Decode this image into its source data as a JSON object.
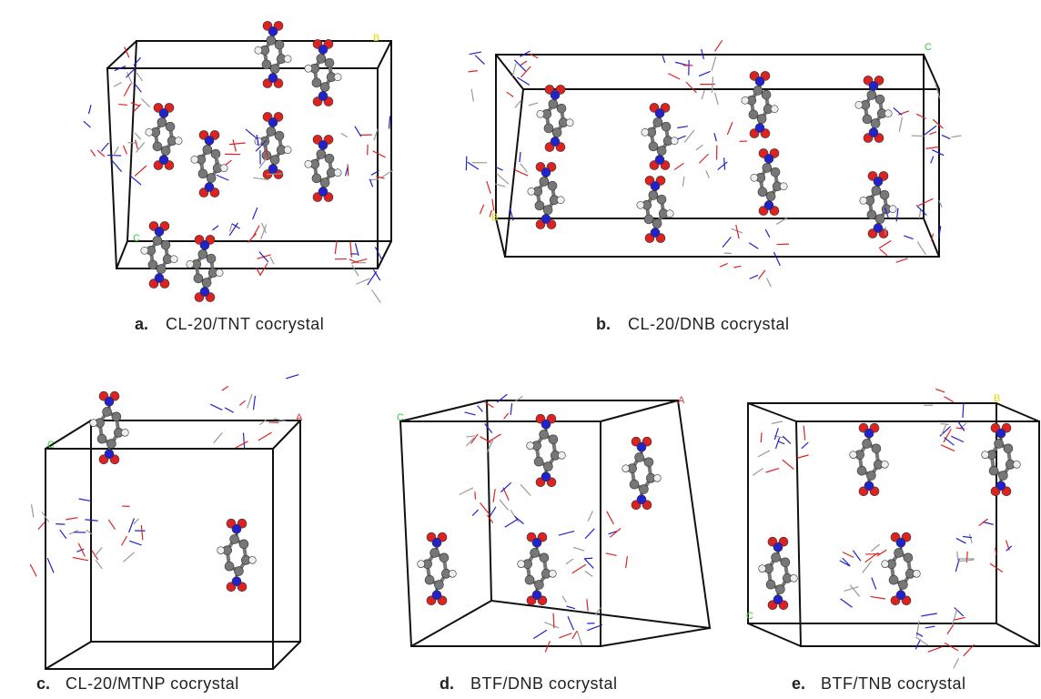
{
  "panels": [
    {
      "letter": "a.",
      "caption": "CL-20/TNT cocrystal",
      "axes": [
        "B",
        "C"
      ]
    },
    {
      "letter": "b.",
      "caption": "CL-20/DNB cocrystal",
      "axes": [
        "C",
        "B"
      ]
    },
    {
      "letter": "c.",
      "caption": "CL-20/MTNP cocrystal",
      "axes": [
        "C",
        "A"
      ]
    },
    {
      "letter": "d.",
      "caption": "BTF/DNB cocrystal",
      "axes": [
        "C",
        "A"
      ]
    },
    {
      "letter": "e.",
      "caption": "BTF/TNB cocrystal",
      "axes": [
        "B",
        "C"
      ]
    }
  ]
}
